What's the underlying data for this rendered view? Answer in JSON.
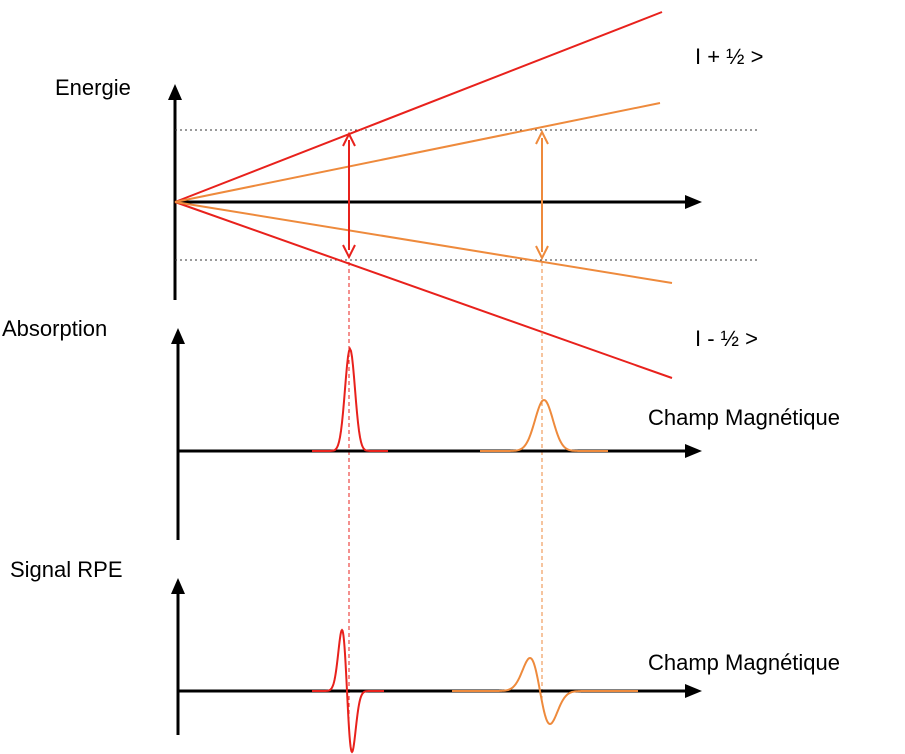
{
  "labels": {
    "energy_axis": "Energie",
    "upper_state": "I + ½ >",
    "lower_state": "I - ½ >",
    "absorption_axis": "Absorption",
    "epr_axis": "Signal RPE",
    "field_axis_absorption": "Champ Magnétique",
    "field_axis_epr": "Champ Magnétique"
  },
  "colors": {
    "axes": "#000000",
    "species_1": "#e8211c",
    "species_2": "#ee8a3c",
    "guides": "#333333"
  }
}
